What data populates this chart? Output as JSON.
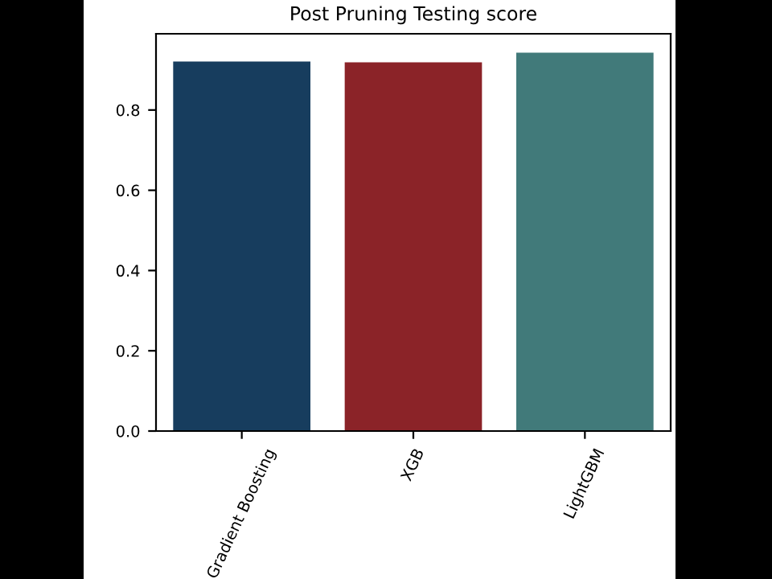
{
  "chart_data": {
    "type": "bar",
    "title": "Post Pruning Testing score",
    "categories": [
      "Gradient Boosting",
      "XGB",
      "LightGBM"
    ],
    "values": [
      0.921,
      0.919,
      0.943
    ],
    "colors": [
      "#173d5e",
      "#8b2328",
      "#417a7a"
    ],
    "ylim": [
      0,
      0.99
    ],
    "yticks": [
      {
        "value": 0,
        "label": "0.0"
      },
      {
        "value": 0.2,
        "label": "0.2"
      },
      {
        "value": 0.4,
        "label": "0.4"
      },
      {
        "value": 0.6,
        "label": "0.6"
      },
      {
        "value": 0.8,
        "label": "0.8"
      }
    ],
    "grid": false
  }
}
